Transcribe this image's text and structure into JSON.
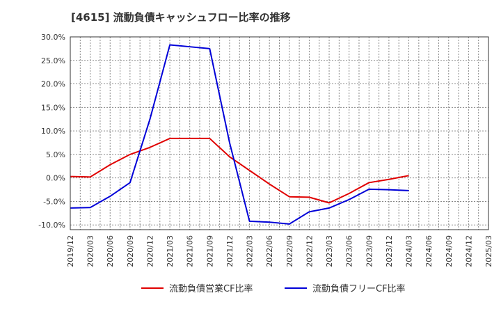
{
  "chart_data": {
    "type": "line",
    "title": "[4615]  流動負債キャッシュフロー比率の推移",
    "xlabel": "",
    "ylabel": "",
    "ylim": [
      -11,
      30
    ],
    "y_ticks": [
      {
        "value": 30,
        "label": "30.0%"
      },
      {
        "value": 25,
        "label": "25.0%"
      },
      {
        "value": 20,
        "label": "20.0%"
      },
      {
        "value": 15,
        "label": "15.0%"
      },
      {
        "value": 10,
        "label": "10.0%"
      },
      {
        "value": 5,
        "label": "5.0%"
      },
      {
        "value": 0,
        "label": "0.0%"
      },
      {
        "value": -5,
        "label": "-5.0%"
      },
      {
        "value": -10,
        "label": "-10.0%"
      }
    ],
    "categories": [
      "2019/12",
      "2020/03",
      "2020/06",
      "2020/09",
      "2020/12",
      "2021/03",
      "2021/06",
      "2021/09",
      "2021/12",
      "2022/03",
      "2022/06",
      "2022/09",
      "2022/12",
      "2023/03",
      "2023/06",
      "2023/09",
      "2023/12",
      "2024/03",
      "2024/06",
      "2024/09",
      "2024/12",
      "2025/03"
    ],
    "grid": true,
    "legend_position": "bottom",
    "series": [
      {
        "name": "流動負債営業CF比率",
        "color": "#e00000",
        "values": [
          0.3,
          0.2,
          2.8,
          5.0,
          6.5,
          8.4,
          8.4,
          8.4,
          4.5,
          1.6,
          -1.3,
          -4.0,
          -4.1,
          -5.3,
          -3.3,
          -1.0,
          -0.3,
          0.5,
          null,
          null,
          null,
          null
        ]
      },
      {
        "name": "流動負債フリーCF比率",
        "color": "#0000d8",
        "values": [
          -6.4,
          -6.3,
          -3.9,
          -1.0,
          12.5,
          28.3,
          27.9,
          27.5,
          7.5,
          -9.2,
          -9.4,
          -9.8,
          -7.2,
          -6.4,
          -4.6,
          -2.4,
          -2.5,
          -2.7,
          null,
          null,
          null,
          null
        ]
      }
    ]
  }
}
